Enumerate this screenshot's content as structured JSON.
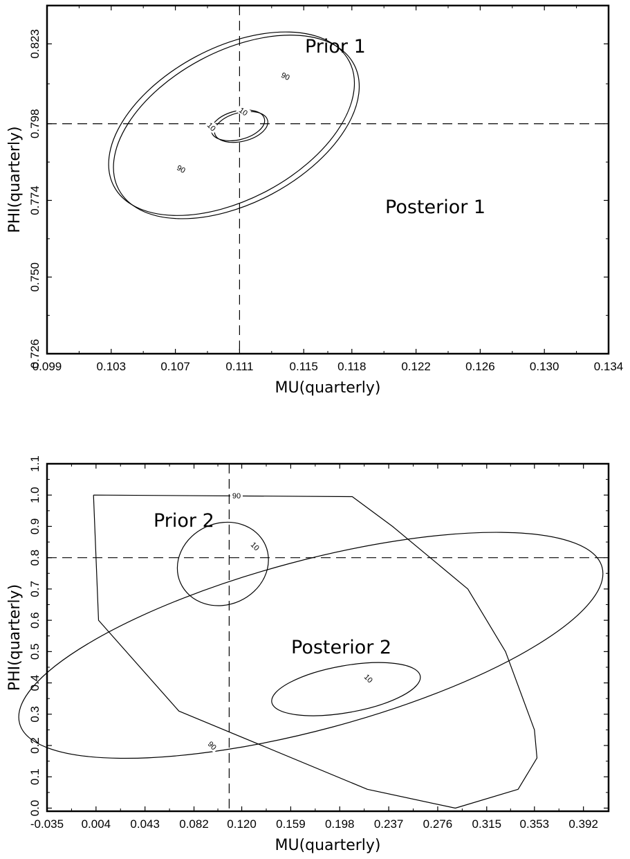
{
  "chart_data": [
    {
      "type": "contour",
      "xlabel": "MU(quarterly)",
      "ylabel": "PHI(quarterly)",
      "xlim": [
        0.099,
        0.134
      ],
      "ylim": [
        0.726,
        0.835
      ],
      "xticks": [
        "0.099",
        "0.103",
        "0.107",
        "0.111",
        "0.115",
        "0.118",
        "0.122",
        "0.126",
        "0.130",
        "0.134"
      ],
      "yticks": [
        "0.726",
        "0.750",
        "0.774",
        "0.798",
        "0.823"
      ],
      "reference_lines": {
        "x": 0.111,
        "y": 0.798
      },
      "annotations": [
        "Prior 1",
        "Posterior 1"
      ],
      "contour_labels": [
        "90",
        "90",
        "10",
        "10"
      ],
      "contours": [
        {
          "level": "90",
          "center": [
            0.1105,
            0.798
          ],
          "rx": 0.0083,
          "ry": 0.0238,
          "angle_deg": -28
        },
        {
          "level": "90",
          "center": [
            0.1108,
            0.797
          ],
          "rx": 0.0083,
          "ry": 0.0238,
          "angle_deg": -28
        },
        {
          "level": "10",
          "center": [
            0.1109,
            0.7975
          ],
          "rx": 0.0017,
          "ry": 0.0045,
          "angle_deg": -14
        },
        {
          "level": "10",
          "center": [
            0.1111,
            0.797
          ],
          "rx": 0.0017,
          "ry": 0.0045,
          "angle_deg": -14
        }
      ]
    },
    {
      "type": "contour",
      "xlabel": "MU(quarterly)",
      "ylabel": "PHI(quarterly)",
      "xlim": [
        -0.035,
        0.412
      ],
      "ylim": [
        -0.01,
        1.1
      ],
      "xticks": [
        "-0.035",
        "0.004",
        "0.043",
        "0.082",
        "0.120",
        "0.159",
        "0.198",
        "0.237",
        "0.276",
        "0.315",
        "0.353",
        "0.392"
      ],
      "yticks": [
        "0.0",
        "0.1",
        "0.2",
        "0.3",
        "0.4",
        "0.5",
        "0.6",
        "0.7",
        "0.8",
        "0.9",
        "1.0",
        "1.1"
      ],
      "reference_lines": {
        "x": 0.11,
        "y": 0.8
      },
      "annotations": [
        "Prior 2",
        "Posterior 2"
      ],
      "contour_labels": [
        "90",
        "10",
        "90",
        "10"
      ],
      "contours": [
        {
          "series": "Prior 2",
          "level": "10",
          "center": [
            0.105,
            0.78
          ],
          "rx": 0.037,
          "ry": 0.13,
          "angle_deg": -24
        },
        {
          "series": "Prior 2",
          "level": "90",
          "center": [
            0.175,
            0.52
          ],
          "rx": 0.24,
          "ry": 0.27,
          "angle_deg": -15
        },
        {
          "series": "Posterior 2",
          "level": "10",
          "center": [
            0.203,
            0.38
          ],
          "rx": 0.06,
          "ry": 0.075,
          "angle_deg": -10
        },
        {
          "series": "Posterior 2",
          "level": "90",
          "polyline": [
            [
              0.002,
              1.0
            ],
            [
              0.208,
              0.995
            ],
            [
              0.24,
              0.9
            ],
            [
              0.3,
              0.7
            ],
            [
              0.33,
              0.5
            ],
            [
              0.353,
              0.25
            ],
            [
              0.355,
              0.16
            ],
            [
              0.34,
              0.06
            ],
            [
              0.29,
              0.0
            ],
            [
              0.22,
              0.06
            ],
            [
              0.07,
              0.31
            ],
            [
              0.006,
              0.6
            ],
            [
              0.002,
              1.0
            ]
          ]
        }
      ]
    }
  ]
}
